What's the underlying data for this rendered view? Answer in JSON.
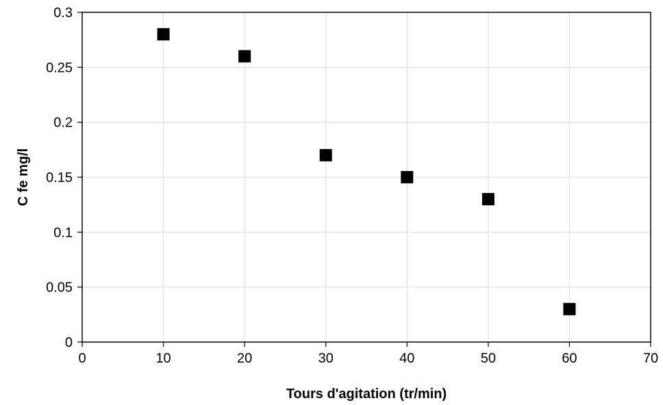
{
  "chart_data": {
    "type": "scatter",
    "title": "",
    "xlabel": "Tours d'agitation (tr/min)",
    "ylabel": "C fe  mg/l",
    "xlim": [
      0,
      70
    ],
    "ylim": [
      0,
      0.3
    ],
    "x_ticks": [
      0,
      10,
      20,
      30,
      40,
      50,
      60,
      70
    ],
    "y_ticks": [
      0,
      0.05,
      0.1,
      0.15,
      0.2,
      0.25,
      0.3
    ],
    "x_tick_labels": [
      "0",
      "10",
      "20",
      "30",
      "40",
      "50",
      "60",
      "70"
    ],
    "y_tick_labels": [
      "0",
      "0.05",
      "0.1",
      "0.15",
      "0.2",
      "0.25",
      "0.3"
    ],
    "grid": true,
    "legend": "none",
    "marker": "square",
    "marker_color": "#000000",
    "grid_color": "#d9d9d9",
    "series": [
      {
        "points": [
          {
            "x": 10,
            "y": 0.28
          },
          {
            "x": 20,
            "y": 0.26
          },
          {
            "x": 30,
            "y": 0.17
          },
          {
            "x": 40,
            "y": 0.15
          },
          {
            "x": 50,
            "y": 0.13
          },
          {
            "x": 60,
            "y": 0.03
          }
        ]
      }
    ]
  }
}
